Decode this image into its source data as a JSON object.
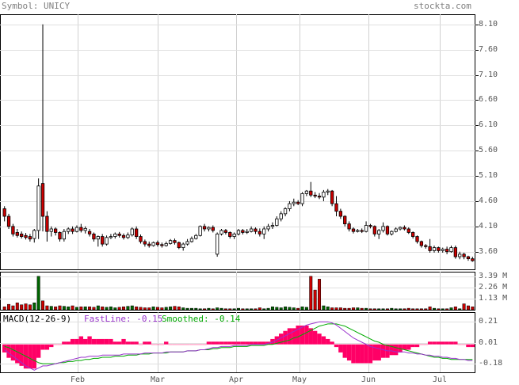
{
  "header": {
    "symbol_text": "Symbol: UNICY",
    "site_text": "stockta.com"
  },
  "chart_data": {
    "type": "candlestick",
    "symbol": "UNICY",
    "price_axis": {
      "ticks": [
        "8.10",
        "7.60",
        "7.10",
        "6.60",
        "6.10",
        "5.60",
        "5.10",
        "4.60",
        "4.10",
        "3.60"
      ]
    },
    "volume_axis": {
      "ticks": [
        "3.39 M",
        "2.26 M",
        "1.13 M"
      ]
    },
    "macd_axis": {
      "ticks": [
        "0.21",
        "0.01",
        "-0.18"
      ]
    },
    "x_labels": [
      "Feb",
      "Mar",
      "Apr",
      "May",
      "Jun",
      "Jul"
    ],
    "macd_legend": {
      "title": "MACD(12-26-9)",
      "fast_text": "FastLine: -0.15",
      "smooth_text": "Smoothed: -0.14"
    },
    "colors": {
      "up_candle": "#ffffff",
      "down_candle": "#cc0000",
      "volume_up": "#006600",
      "volume_down": "#cc0000",
      "fast_line": "#9933cc",
      "smoothed_line": "#00aa00",
      "histogram": "#ff0066"
    },
    "candles": [
      [
        4.45,
        4.5,
        4.3,
        4.2
      ],
      [
        4.3,
        4.35,
        4.1,
        4.05
      ],
      [
        4.1,
        4.15,
        3.95,
        3.9
      ],
      [
        3.98,
        4.05,
        3.92,
        3.88
      ],
      [
        3.95,
        4.0,
        3.9,
        3.86
      ],
      [
        3.92,
        3.97,
        3.88,
        3.84
      ],
      [
        3.9,
        3.95,
        3.85,
        3.8
      ],
      [
        3.86,
        4.05,
        4.02,
        3.78
      ],
      [
        4.02,
        5.05,
        4.9,
        3.85
      ],
      [
        4.95,
        8.1,
        4.3,
        4.0
      ],
      [
        4.3,
        4.4,
        4.0,
        3.8
      ],
      [
        4.0,
        4.1,
        4.05,
        3.9
      ],
      [
        4.05,
        4.08,
        3.98,
        3.92
      ],
      [
        3.98,
        4.0,
        3.85,
        3.8
      ],
      [
        3.85,
        4.05,
        4.0,
        3.8
      ],
      [
        4.0,
        4.08,
        4.05,
        3.95
      ],
      [
        4.05,
        4.1,
        4.0,
        3.95
      ],
      [
        4.0,
        4.12,
        4.08,
        3.98
      ],
      [
        4.08,
        4.15,
        4.02,
        3.98
      ],
      [
        4.02,
        4.1,
        4.06,
        3.96
      ],
      [
        4.0,
        4.05,
        3.95,
        3.9
      ],
      [
        3.95,
        3.98,
        3.85,
        3.8
      ],
      [
        3.85,
        3.92,
        3.9,
        3.7
      ],
      [
        3.9,
        3.95,
        3.75,
        3.7
      ],
      [
        3.75,
        3.92,
        3.88,
        3.72
      ],
      [
        3.88,
        3.95,
        3.9,
        3.85
      ],
      [
        3.9,
        3.98,
        3.95,
        3.86
      ],
      [
        3.95,
        3.99,
        3.92,
        3.88
      ],
      [
        3.92,
        3.96,
        3.88,
        3.84
      ],
      [
        3.88,
        3.98,
        3.93,
        3.85
      ],
      [
        3.93,
        4.08,
        4.05,
        3.9
      ],
      [
        4.05,
        4.1,
        3.9,
        3.85
      ],
      [
        3.9,
        3.94,
        3.8,
        3.76
      ],
      [
        3.8,
        3.84,
        3.75,
        3.7
      ],
      [
        3.75,
        3.8,
        3.72,
        3.68
      ],
      [
        3.72,
        3.8,
        3.78,
        3.7
      ],
      [
        3.78,
        3.82,
        3.74,
        3.7
      ],
      [
        3.74,
        3.78,
        3.72,
        3.68
      ],
      [
        3.72,
        3.8,
        3.76,
        3.7
      ],
      [
        3.76,
        3.85,
        3.82,
        3.74
      ],
      [
        3.82,
        3.86,
        3.78,
        3.74
      ],
      [
        3.78,
        3.8,
        3.68,
        3.65
      ],
      [
        3.68,
        3.78,
        3.75,
        3.62
      ],
      [
        3.75,
        3.85,
        3.8,
        3.72
      ],
      [
        3.8,
        3.9,
        3.86,
        3.78
      ],
      [
        3.86,
        3.95,
        3.92,
        3.84
      ],
      [
        3.92,
        4.12,
        4.1,
        3.9
      ],
      [
        4.1,
        4.15,
        4.05,
        4.0
      ],
      [
        4.05,
        4.1,
        4.08,
        4.0
      ],
      [
        4.08,
        4.12,
        4.02,
        3.98
      ],
      [
        3.55,
        3.98,
        3.95,
        3.5
      ],
      [
        3.95,
        4.05,
        4.02,
        3.92
      ],
      [
        4.02,
        4.05,
        3.98,
        3.94
      ],
      [
        3.98,
        4.0,
        3.9,
        3.86
      ],
      [
        3.9,
        3.98,
        3.95,
        3.85
      ],
      [
        3.95,
        4.05,
        4.02,
        3.92
      ],
      [
        4.02,
        4.05,
        3.98,
        3.94
      ],
      [
        3.98,
        4.05,
        4.0,
        3.95
      ],
      [
        4.0,
        4.1,
        4.05,
        3.98
      ],
      [
        4.05,
        4.08,
        4.0,
        3.95
      ],
      [
        4.0,
        4.06,
        3.95,
        3.9
      ],
      [
        3.95,
        4.1,
        4.05,
        3.85
      ],
      [
        4.05,
        4.15,
        4.1,
        4.0
      ],
      [
        4.1,
        4.18,
        4.12,
        4.05
      ],
      [
        4.12,
        4.3,
        4.25,
        4.1
      ],
      [
        4.25,
        4.4,
        4.35,
        4.2
      ],
      [
        4.35,
        4.48,
        4.45,
        4.3
      ],
      [
        4.45,
        4.6,
        4.55,
        4.4
      ],
      [
        4.55,
        4.65,
        4.58,
        4.5
      ],
      [
        4.58,
        4.62,
        4.55,
        4.52
      ],
      [
        4.55,
        4.78,
        4.75,
        4.5
      ],
      [
        4.75,
        4.82,
        4.8,
        4.7
      ],
      [
        4.8,
        4.98,
        4.72,
        4.68
      ],
      [
        4.72,
        4.78,
        4.7,
        4.66
      ],
      [
        4.7,
        4.76,
        4.68,
        4.64
      ],
      [
        4.68,
        4.82,
        4.78,
        4.6
      ],
      [
        4.78,
        4.84,
        4.8,
        4.72
      ],
      [
        4.8,
        4.82,
        4.55,
        4.5
      ],
      [
        4.55,
        4.7,
        4.4,
        4.3
      ],
      [
        4.4,
        4.45,
        4.3,
        4.25
      ],
      [
        4.3,
        4.32,
        4.15,
        4.1
      ],
      [
        4.15,
        4.2,
        4.05,
        4.0
      ],
      [
        4.05,
        4.08,
        4.0,
        3.96
      ],
      [
        4.0,
        4.05,
        4.02,
        3.98
      ],
      [
        4.02,
        4.06,
        4.0,
        3.97
      ],
      [
        4.0,
        4.2,
        4.12,
        3.98
      ],
      [
        4.12,
        4.15,
        4.1,
        4.06
      ],
      [
        4.1,
        4.12,
        3.95,
        3.9
      ],
      [
        3.95,
        4.05,
        4.02,
        3.85
      ],
      [
        4.02,
        4.18,
        4.1,
        3.98
      ],
      [
        4.1,
        4.12,
        3.95,
        3.92
      ],
      [
        3.95,
        4.02,
        4.0,
        3.92
      ],
      [
        4.0,
        4.08,
        4.05,
        3.98
      ],
      [
        4.05,
        4.1,
        4.08,
        4.02
      ],
      [
        4.08,
        4.12,
        4.05,
        4.02
      ],
      [
        4.05,
        4.08,
        3.98,
        3.95
      ],
      [
        3.98,
        4.0,
        3.9,
        3.86
      ],
      [
        3.9,
        3.92,
        3.8,
        3.76
      ],
      [
        3.8,
        3.82,
        3.72,
        3.68
      ],
      [
        3.72,
        3.75,
        3.7,
        3.66
      ],
      [
        3.7,
        3.85,
        3.62,
        3.58
      ],
      [
        3.62,
        3.72,
        3.68,
        3.58
      ],
      [
        3.68,
        3.7,
        3.62,
        3.58
      ],
      [
        3.62,
        3.68,
        3.65,
        3.58
      ],
      [
        3.65,
        3.7,
        3.6,
        3.55
      ],
      [
        3.6,
        3.72,
        3.68,
        3.58
      ],
      [
        3.68,
        3.72,
        3.5,
        3.46
      ],
      [
        3.5,
        3.6,
        3.55,
        3.45
      ],
      [
        3.55,
        3.58,
        3.5,
        3.45
      ],
      [
        3.5,
        3.52,
        3.46,
        3.42
      ],
      [
        3.46,
        3.5,
        3.42,
        3.4
      ]
    ],
    "volume": [
      0.3,
      0.55,
      0.4,
      0.7,
      0.5,
      0.6,
      0.5,
      0.7,
      3.39,
      0.9,
      0.4,
      0.35,
      0.3,
      0.4,
      0.35,
      0.3,
      0.4,
      0.25,
      0.3,
      0.3,
      0.3,
      0.25,
      0.4,
      0.3,
      0.25,
      0.3,
      0.2,
      0.25,
      0.3,
      0.35,
      0.4,
      0.3,
      0.25,
      0.2,
      0.2,
      0.3,
      0.25,
      0.2,
      0.25,
      0.3,
      0.35,
      0.3,
      0.2,
      0.15,
      0.15,
      0.15,
      0.1,
      0.1,
      0.15,
      0.1,
      0.2,
      0.15,
      0.1,
      0.1,
      0.1,
      0.15,
      0.1,
      0.1,
      0.1,
      0.1,
      0.2,
      0.1,
      0.15,
      0.3,
      0.25,
      0.2,
      0.3,
      0.25,
      0.2,
      0.15,
      0.3,
      0.25,
      3.39,
      2.0,
      3.1,
      0.4,
      0.3,
      0.2,
      0.2,
      0.2,
      0.15,
      0.15,
      0.2,
      0.2,
      0.15,
      0.15,
      0.1,
      0.1,
      0.1,
      0.1,
      0.1,
      0.15,
      0.1,
      0.1,
      0.1,
      0.15,
      0.1,
      0.1,
      0.1,
      0.1,
      0.3,
      0.15,
      0.1,
      0.1,
      0.1,
      0.2,
      0.3,
      0.1,
      0.6,
      0.4,
      0.3
    ],
    "macd_fast": [
      -0.05,
      -0.08,
      -0.11,
      -0.14,
      -0.17,
      -0.2,
      -0.22,
      -0.24,
      -0.22,
      -0.2,
      -0.2,
      -0.19,
      -0.18,
      -0.17,
      -0.16,
      -0.15,
      -0.14,
      -0.13,
      -0.12,
      -0.12,
      -0.11,
      -0.11,
      -0.11,
      -0.1,
      -0.1,
      -0.1,
      -0.1,
      -0.1,
      -0.09,
      -0.09,
      -0.09,
      -0.09,
      -0.09,
      -0.08,
      -0.08,
      -0.08,
      -0.08,
      -0.08,
      -0.07,
      -0.07,
      -0.07,
      -0.07,
      -0.07,
      -0.06,
      -0.06,
      -0.06,
      -0.05,
      -0.05,
      -0.04,
      -0.03,
      -0.03,
      -0.02,
      -0.02,
      -0.02,
      -0.01,
      -0.01,
      -0.01,
      -0.01,
      0.0,
      0.0,
      0.0,
      0.0,
      0.01,
      0.02,
      0.04,
      0.06,
      0.08,
      0.1,
      0.12,
      0.14,
      0.16,
      0.18,
      0.19,
      0.2,
      0.21,
      0.21,
      0.21,
      0.2,
      0.18,
      0.15,
      0.12,
      0.09,
      0.06,
      0.04,
      0.02,
      0.0,
      -0.02,
      -0.03,
      -0.04,
      -0.05,
      -0.06,
      -0.06,
      -0.07,
      -0.07,
      -0.07,
      -0.08,
      -0.08,
      -0.09,
      -0.09,
      -0.1,
      -0.1,
      -0.11,
      -0.11,
      -0.12,
      -0.12,
      -0.13,
      -0.13,
      -0.14,
      -0.14,
      -0.15,
      -0.15
    ],
    "macd_smoothed": [
      -0.02,
      -0.03,
      -0.05,
      -0.07,
      -0.09,
      -0.11,
      -0.13,
      -0.15,
      -0.17,
      -0.18,
      -0.18,
      -0.18,
      -0.18,
      -0.17,
      -0.17,
      -0.16,
      -0.16,
      -0.15,
      -0.15,
      -0.14,
      -0.14,
      -0.13,
      -0.13,
      -0.12,
      -0.12,
      -0.12,
      -0.11,
      -0.11,
      -0.11,
      -0.1,
      -0.1,
      -0.1,
      -0.09,
      -0.09,
      -0.09,
      -0.08,
      -0.08,
      -0.08,
      -0.08,
      -0.07,
      -0.07,
      -0.07,
      -0.07,
      -0.06,
      -0.06,
      -0.06,
      -0.05,
      -0.05,
      -0.05,
      -0.04,
      -0.04,
      -0.03,
      -0.03,
      -0.03,
      -0.02,
      -0.02,
      -0.02,
      -0.02,
      -0.01,
      -0.01,
      -0.01,
      -0.01,
      0.0,
      0.0,
      0.01,
      0.02,
      0.03,
      0.04,
      0.06,
      0.07,
      0.09,
      0.11,
      0.13,
      0.15,
      0.17,
      0.18,
      0.19,
      0.19,
      0.19,
      0.18,
      0.17,
      0.15,
      0.13,
      0.11,
      0.09,
      0.07,
      0.05,
      0.03,
      0.02,
      0.0,
      -0.01,
      -0.02,
      -0.03,
      -0.04,
      -0.05,
      -0.06,
      -0.07,
      -0.08,
      -0.09,
      -0.1,
      -0.11,
      -0.12,
      -0.12,
      -0.13,
      -0.13,
      -0.14,
      -0.14,
      -0.14,
      -0.14,
      -0.14,
      -0.14
    ]
  }
}
